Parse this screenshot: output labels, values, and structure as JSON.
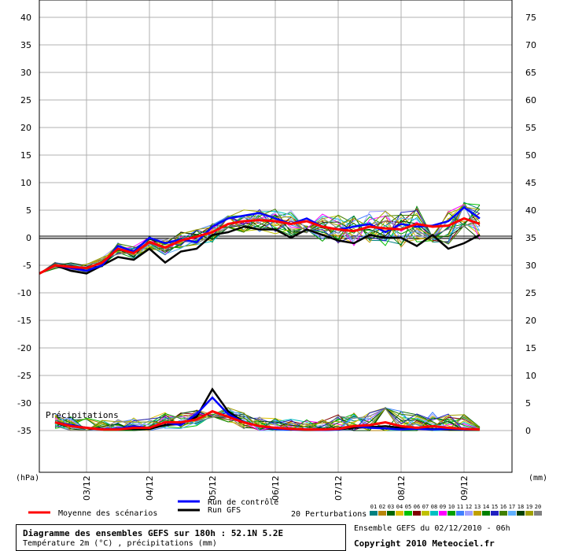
{
  "chart_data": {
    "type": "line",
    "title": "Diagramme des ensembles GEFS sur 180h : 52.1N 5.2E",
    "subtitle": "Température 2m (°C) , précipitations (mm)",
    "left_axis_label": "(hPa)",
    "right_axis_label": "(mm)",
    "left_ticks": [
      40,
      35,
      30,
      25,
      20,
      15,
      10,
      5,
      0,
      -5,
      -10,
      -15,
      -20,
      -25,
      -30,
      -35
    ],
    "right_ticks": [
      75,
      70,
      65,
      60,
      55,
      50,
      45,
      40,
      35,
      30,
      25,
      20,
      15,
      10,
      5,
      0
    ],
    "ylim": [
      -40,
      40
    ],
    "x_ticks": [
      "03/12",
      "04/12",
      "05/12",
      "06/12",
      "07/12",
      "08/12",
      "09/12"
    ],
    "x_step": "6h",
    "grid": true,
    "precip_label": "Précipitations",
    "legend": {
      "mean": "Moyenne des scénarios",
      "control": "Run de contrôle",
      "gfs": "Run GFS",
      "perturbations": "20 Perturbations",
      "pert_numbers": [
        "01",
        "02",
        "03",
        "04",
        "05",
        "06",
        "07",
        "08",
        "09",
        "10",
        "11",
        "12",
        "13",
        "14",
        "15",
        "16",
        "17",
        "18",
        "19",
        "20"
      ]
    },
    "colors": {
      "mean": "#ff0000",
      "control": "#0000ff",
      "gfs": "#000000",
      "perturbations": [
        "#008080",
        "#b8860b",
        "#006400",
        "#e0c000",
        "#00c000",
        "#800000",
        "#c0c000",
        "#00c0c0",
        "#ff00ff",
        "#00a000",
        "#4080ff",
        "#a0a0ff",
        "#c0a000",
        "#008000",
        "#2020c0",
        "#408000",
        "#60b0ff",
        "#004000",
        "#a0a000",
        "#808080"
      ]
    },
    "series": [
      {
        "name": "Moyenne des scénarios",
        "temp": [
          -6.5,
          -5.0,
          -5.3,
          -5.5,
          -4.5,
          -2.0,
          -2.8,
          -0.8,
          -1.8,
          -0.5,
          0.2,
          1.0,
          2.5,
          3.0,
          3.2,
          3.0,
          2.5,
          3.0,
          2.0,
          1.5,
          1.2,
          2.0,
          1.7,
          1.5,
          2.5,
          2.0,
          2.2,
          3.5,
          2.5
        ],
        "precip": [
          null,
          1.5,
          0.8,
          0.5,
          0.2,
          0.2,
          0.5,
          0.5,
          1.5,
          1.5,
          2.0,
          3.5,
          2.5,
          1.5,
          0.8,
          0.5,
          0.3,
          0.2,
          0.2,
          0.3,
          0.8,
          1.0,
          1.5,
          0.8,
          0.5,
          0.8,
          0.5,
          0.3,
          0.2
        ]
      },
      {
        "name": "Run de contrôle",
        "temp": [
          null,
          -5.0,
          -5.5,
          -6.0,
          -5.0,
          -1.5,
          -2.5,
          0.0,
          -1.0,
          -0.3,
          -0.8,
          2.0,
          3.5,
          4.0,
          4.5,
          3.5,
          2.5,
          3.5,
          2.0,
          1.5,
          2.0,
          2.5,
          1.0,
          2.5,
          2.0,
          2.2,
          3.0,
          5.5,
          3.5
        ],
        "precip": [
          null,
          1.5,
          1.0,
          0.5,
          0.3,
          0.3,
          0.8,
          0.5,
          1.5,
          1.0,
          3.0,
          6.0,
          3.0,
          1.5,
          0.8,
          0.3,
          0.2,
          0.2,
          0.1,
          0.2,
          0.8,
          0.5,
          0.4,
          0.2,
          0.3,
          0.2,
          0.3,
          0.2,
          0.2
        ]
      },
      {
        "name": "Run GFS",
        "temp": [
          null,
          -5.0,
          -6.0,
          -6.5,
          -5.0,
          -3.5,
          -4.0,
          -2.0,
          -4.5,
          -2.5,
          -2.0,
          0.5,
          1.0,
          2.0,
          1.5,
          1.5,
          0.0,
          1.5,
          0.5,
          -0.5,
          -1.0,
          0.5,
          0.0,
          0.0,
          -1.5,
          0.5,
          -2.0,
          -1.0,
          0.5
        ],
        "precip": [
          null,
          1.5,
          1.0,
          0.5,
          0.2,
          0.2,
          0.3,
          0.3,
          1.0,
          1.2,
          2.5,
          7.5,
          3.5,
          1.5,
          0.8,
          0.3,
          0.2,
          0.1,
          0.1,
          0.2,
          0.5,
          0.6,
          0.8,
          0.5,
          0.3,
          0.3,
          0.2,
          0.2,
          0.2
        ]
      }
    ]
  }
}
